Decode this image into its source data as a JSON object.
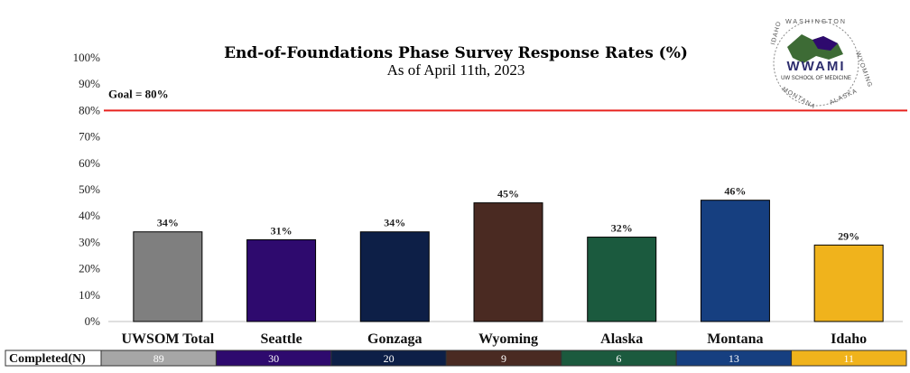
{
  "chart_data": {
    "type": "bar",
    "title": "End-of-Foundations Phase Survey Response Rates (%)",
    "subtitle": "As of April 11th, 2023",
    "categories": [
      "UWSOM Total",
      "Seattle",
      "Gonzaga",
      "Wyoming",
      "Alaska",
      "Montana",
      "Idaho"
    ],
    "values": [
      34,
      31,
      34,
      45,
      32,
      46,
      29
    ],
    "data_labels": [
      "34%",
      "31%",
      "34%",
      "45%",
      "32%",
      "46%",
      "29%"
    ],
    "colors": [
      "#7f7f7f",
      "#2e0a6e",
      "#0d1f47",
      "#4a2a22",
      "#1b5a3e",
      "#163f80",
      "#f0b31c"
    ],
    "completed_colors": [
      "#a6a6a6",
      "#2e0a6e",
      "#0d1f47",
      "#4a2a22",
      "#1b5a3e",
      "#163f80",
      "#f0b31c"
    ],
    "ylim": [
      0,
      100
    ],
    "yticks": [
      0,
      10,
      20,
      30,
      40,
      50,
      60,
      70,
      80,
      90,
      100
    ],
    "ytick_labels": [
      "0%",
      "10%",
      "20%",
      "30%",
      "40%",
      "50%",
      "60%",
      "70%",
      "80%",
      "90%",
      "100%"
    ],
    "goal": {
      "value": 80,
      "label": "Goal = 80%",
      "color": "#e8231f"
    },
    "completed": {
      "label": "Completed(N)",
      "values": [
        "89",
        "30",
        "20",
        "9",
        "6",
        "13",
        "11"
      ]
    },
    "grid": false,
    "legend": "none"
  },
  "logo": {
    "name": "WWAMI",
    "subtitle": "UW SCHOOL OF MEDICINE",
    "states": [
      "WASHINGTON",
      "WYOMING",
      "ALASKA",
      "MONTANA",
      "IDAHO"
    ]
  }
}
